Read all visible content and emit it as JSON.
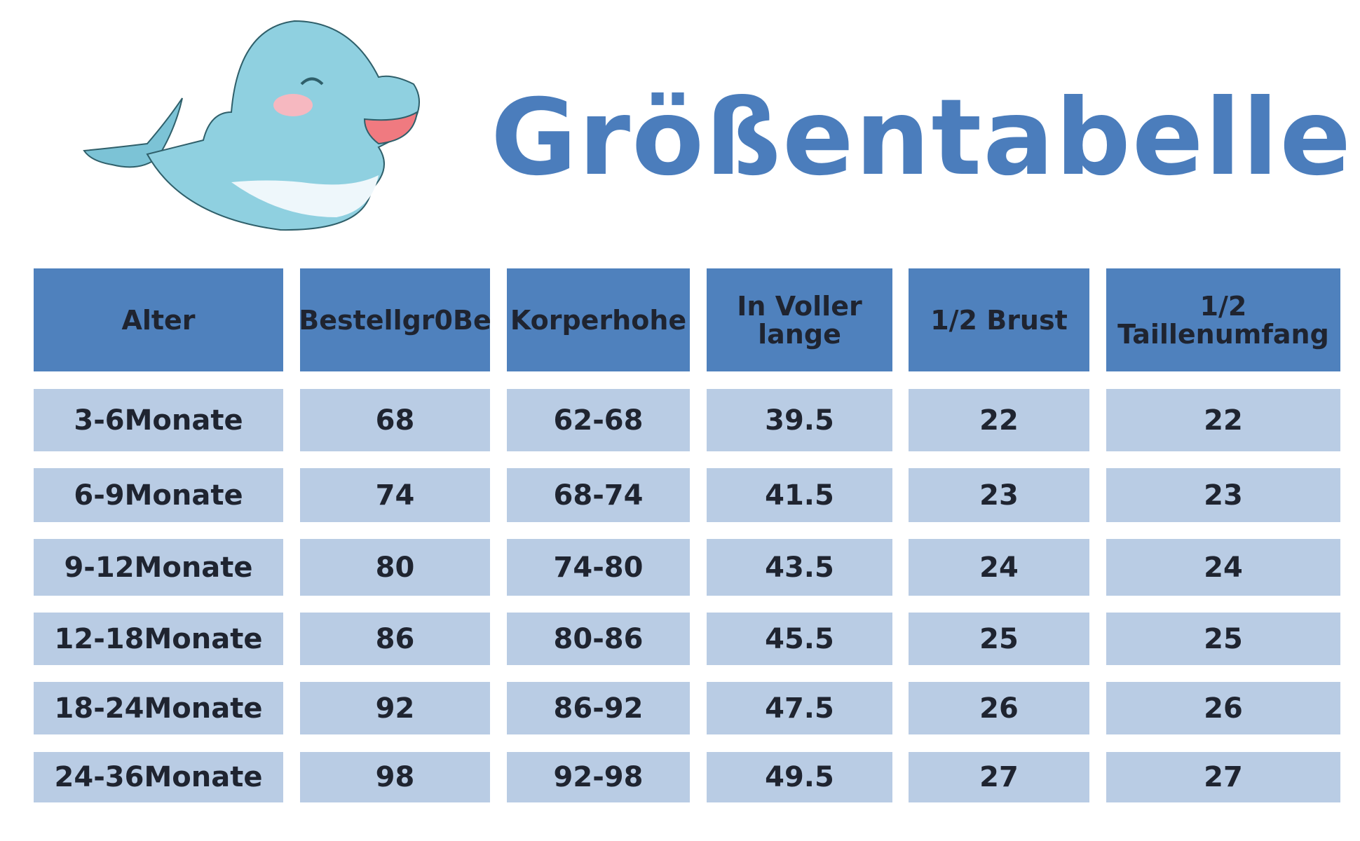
{
  "header": {
    "title": "Größentabelle"
  },
  "table": {
    "columns": [
      "Alter",
      "Bestellgr0Be",
      "Korperhohe",
      "In Voller lange",
      "1/2 Brust",
      "1/2 Taillenumfang"
    ],
    "rows": [
      [
        "3-6Monate",
        "68",
        "62-68",
        "39.5",
        "22",
        "22"
      ],
      [
        "6-9Monate",
        "74",
        "68-74",
        "41.5",
        "23",
        "23"
      ],
      [
        "9-12Monate",
        "80",
        "74-80",
        "43.5",
        "24",
        "24"
      ],
      [
        "12-18Monate",
        "86",
        "80-86",
        "45.5",
        "25",
        "25"
      ],
      [
        "18-24Monate",
        "92",
        "86-92",
        "47.5",
        "26",
        "26"
      ],
      [
        "24-36Monate",
        "98",
        "92-98",
        "49.5",
        "27",
        "27"
      ]
    ]
  }
}
